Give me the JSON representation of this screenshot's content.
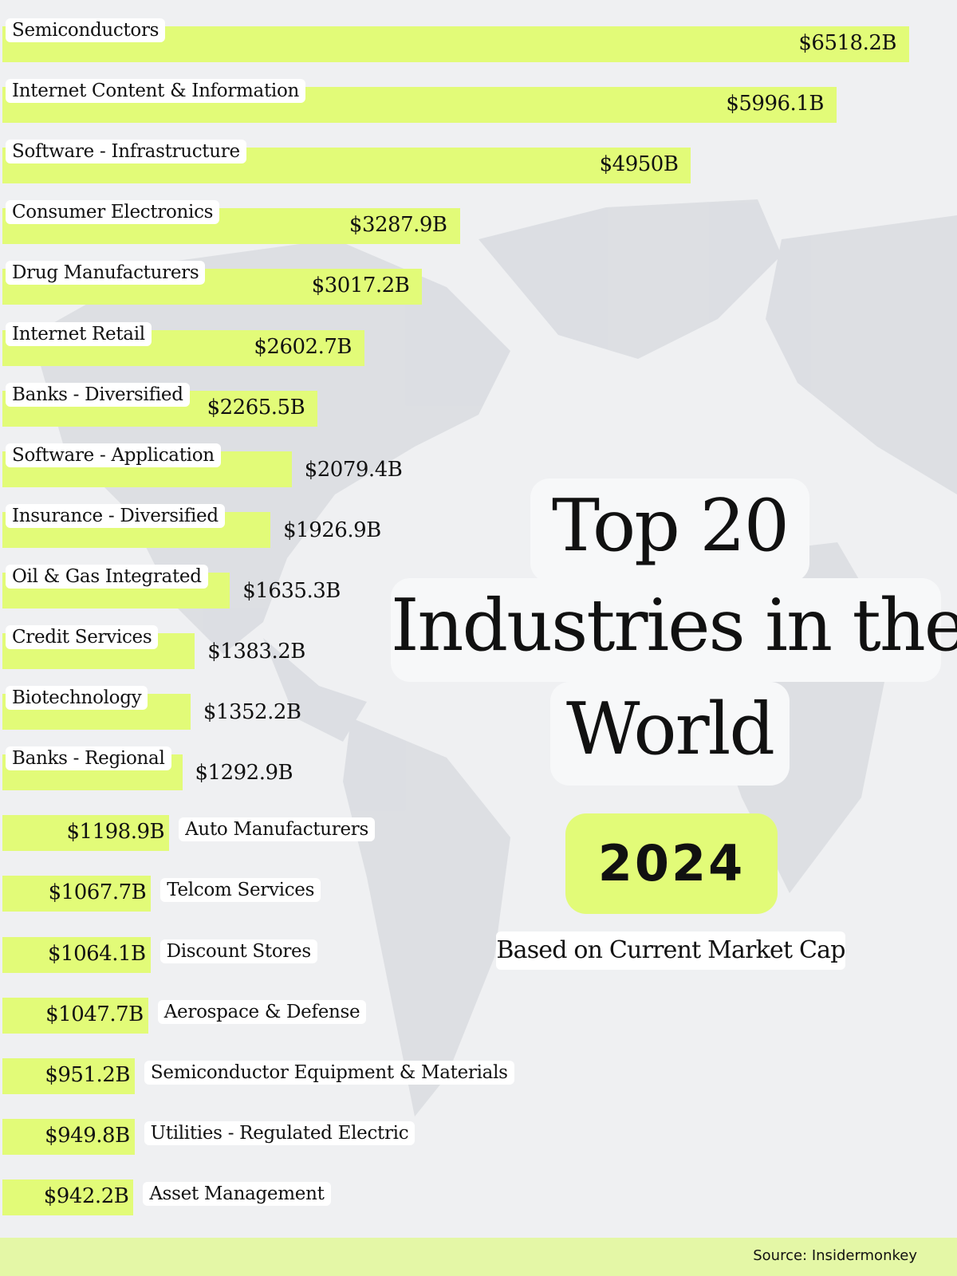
{
  "chart_data": {
    "type": "bar",
    "orientation": "horizontal",
    "title": "Top 20 Industries in the World",
    "year": "2024",
    "subtitle": "Based on Current Market Cap",
    "unit": "$B",
    "categories": [
      "Semiconductors",
      "Internet Content & Information",
      "Software - Infrastructure",
      "Consumer Electronics",
      "Drug Manufacturers",
      "Internet Retail",
      "Banks - Diversified",
      "Software - Application",
      "Insurance - Diversified",
      "Oil & Gas Integrated",
      "Credit Services",
      "Biotechnology",
      "Banks - Regional",
      "Auto Manufacturers",
      "Telcom Services",
      "Discount Stores",
      "Aerospace & Defense",
      "Semiconductor Equipment & Materials",
      "Utilities - Regulated Electric",
      "Asset Management"
    ],
    "values": [
      6518.2,
      5996.1,
      4950,
      3287.9,
      3017.2,
      2602.7,
      2265.5,
      2079.4,
      1926.9,
      1635.3,
      1383.2,
      1352.2,
      1292.9,
      1198.9,
      1067.7,
      1064.1,
      1047.7,
      951.2,
      949.8,
      942.2
    ],
    "value_labels": [
      "$6518.2B",
      "$5996.1B",
      "$4950B",
      "$3287.9B",
      "$3017.2B",
      "$2602.7B",
      "$2265.5B",
      "$2079.4B",
      "$1926.9B",
      "$1635.3B",
      "$1383.2B",
      "$1352.2B",
      "$1292.9B",
      "$1198.9B",
      "$1067.7B",
      "$1064.1B",
      "$1047.7B",
      "$951.2B",
      "$949.8B",
      "$942.2B"
    ],
    "bar_color": "#e2fb78",
    "grid": false,
    "source": "Source: Insidermonkey"
  },
  "title_lines": [
    "Top 20",
    "Industries in the",
    "World"
  ]
}
